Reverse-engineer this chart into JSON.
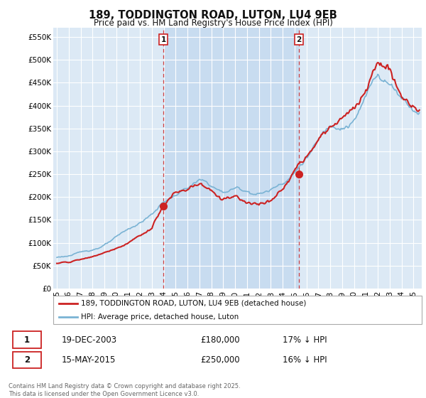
{
  "title": "189, TODDINGTON ROAD, LUTON, LU4 9EB",
  "subtitle": "Price paid vs. HM Land Registry's House Price Index (HPI)",
  "ylabel_ticks": [
    "£0",
    "£50K",
    "£100K",
    "£150K",
    "£200K",
    "£250K",
    "£300K",
    "£350K",
    "£400K",
    "£450K",
    "£500K",
    "£550K"
  ],
  "ytick_values": [
    0,
    50000,
    100000,
    150000,
    200000,
    250000,
    300000,
    350000,
    400000,
    450000,
    500000,
    550000
  ],
  "ylim": [
    0,
    570000
  ],
  "xlim_start": 1994.7,
  "xlim_end": 2025.7,
  "background_color": "#ffffff",
  "plot_bg_color": "#dce9f5",
  "highlight_color": "#c8dcf0",
  "grid_color": "#ffffff",
  "sale1_x": 2003.97,
  "sale1_y": 180000,
  "sale2_x": 2015.37,
  "sale2_y": 250000,
  "legend_line1": "189, TODDINGTON ROAD, LUTON, LU4 9EB (detached house)",
  "legend_line2": "HPI: Average price, detached house, Luton",
  "table_row1": [
    "1",
    "19-DEC-2003",
    "£180,000",
    "17% ↓ HPI"
  ],
  "table_row2": [
    "2",
    "15-MAY-2015",
    "£250,000",
    "16% ↓ HPI"
  ],
  "footer": "Contains HM Land Registry data © Crown copyright and database right 2025.\nThis data is licensed under the Open Government Licence v3.0.",
  "hpi_color": "#7ab3d4",
  "price_color": "#cc2222",
  "vline_color": "#cc2222"
}
